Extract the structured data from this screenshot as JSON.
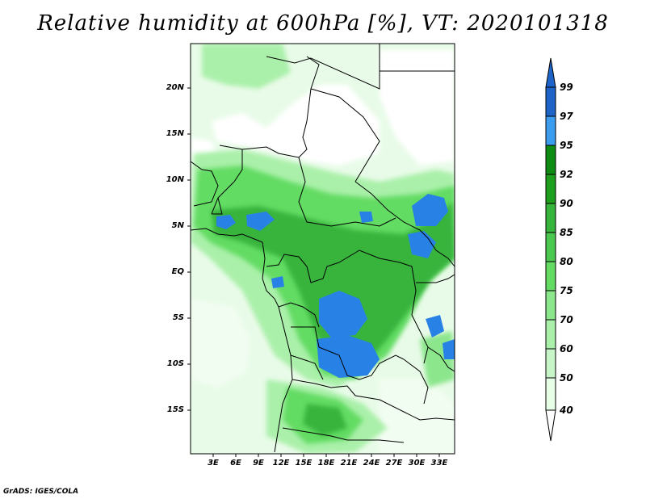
{
  "title": "Relative humidity at 600hPa [%], VT: 2020101318",
  "credit": "GrADS: IGES/COLA",
  "map": {
    "region": "Central Africa",
    "lat_ticks": [
      "20N",
      "15N",
      "10N",
      "5N",
      "EQ",
      "5S",
      "10S",
      "15S"
    ],
    "lon_ticks": [
      "3E",
      "6E",
      "9E",
      "12E",
      "15E",
      "18E",
      "21E",
      "24E",
      "27E",
      "30E",
      "33E"
    ]
  },
  "colorbar": {
    "levels": [
      "99",
      "97",
      "95",
      "92",
      "90",
      "85",
      "80",
      "75",
      "70",
      "60",
      "50",
      "40"
    ],
    "colors": [
      "#1e64c8",
      "#2882e6",
      "#3c9cf0",
      "#0f8c14",
      "#1ea01e",
      "#37b43c",
      "#4bc850",
      "#64dc64",
      "#8ce68c",
      "#aaf0aa",
      "#c8f5c8",
      "#e6ffe6",
      "#ffffff"
    ]
  }
}
